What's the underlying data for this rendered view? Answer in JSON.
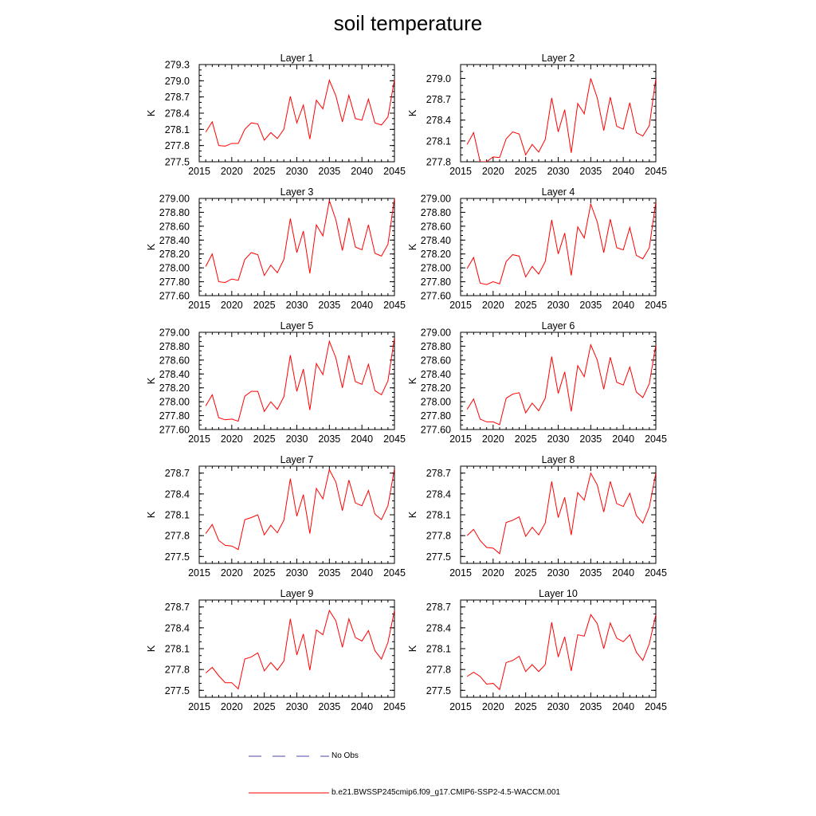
{
  "title": "soil temperature",
  "legend": {
    "no_obs_label": "No Obs",
    "model_label": "b.e21.BWSSP245cmip6.f09_g17.CMIP6-SSP2-4.5-WACCM.001",
    "no_obs_color": "#4a4aa8",
    "model_color": "#ff0000"
  },
  "chart_data": [
    {
      "type": "line",
      "title": "Layer 1",
      "ylabel": "K",
      "xlim": [
        2015,
        2045
      ],
      "ylim": [
        277.5,
        279.3
      ],
      "xticks": [
        "2015",
        "2020",
        "2025",
        "2030",
        "2035",
        "2040",
        "2045"
      ],
      "yticks": [
        "277.5",
        "277.8",
        "278.1",
        "278.4",
        "278.7",
        "279.0",
        "279.3"
      ],
      "x": [
        2016,
        2017,
        2018,
        2019,
        2020,
        2021,
        2022,
        2023,
        2024,
        2025,
        2026,
        2027,
        2028,
        2029,
        2030,
        2031,
        2032,
        2033,
        2034,
        2035,
        2036,
        2037,
        2038,
        2039,
        2040,
        2041,
        2042,
        2043,
        2044,
        2045
      ],
      "series": [
        {
          "values": [
            278.05,
            278.24,
            277.8,
            277.79,
            277.84,
            277.84,
            278.1,
            278.22,
            278.2,
            277.9,
            278.04,
            277.93,
            278.1,
            278.71,
            278.22,
            278.55,
            277.92,
            278.64,
            278.48,
            279.01,
            278.72,
            278.24,
            278.73,
            278.3,
            278.27,
            278.66,
            278.22,
            278.18,
            278.33,
            279.02
          ]
        }
      ]
    },
    {
      "type": "line",
      "title": "Layer 2",
      "ylabel": "K",
      "xlim": [
        2015,
        2045
      ],
      "ylim": [
        277.8,
        279.2
      ],
      "xticks": [
        "2015",
        "2020",
        "2025",
        "2030",
        "2035",
        "2040",
        "2045"
      ],
      "yticks": [
        "277.8",
        "278.1",
        "278.4",
        "278.7",
        "279.0"
      ],
      "x": [
        2016,
        2017,
        2018,
        2019,
        2020,
        2021,
        2022,
        2023,
        2024,
        2025,
        2026,
        2027,
        2028,
        2029,
        2030,
        2031,
        2032,
        2033,
        2034,
        2035,
        2036,
        2037,
        2038,
        2039,
        2040,
        2041,
        2042,
        2043,
        2044,
        2045
      ],
      "series": [
        {
          "values": [
            278.05,
            278.22,
            277.8,
            277.8,
            277.87,
            277.86,
            278.13,
            278.23,
            278.2,
            277.9,
            278.05,
            277.94,
            278.12,
            278.72,
            278.23,
            278.55,
            277.93,
            278.64,
            278.49,
            279.0,
            278.72,
            278.25,
            278.73,
            278.31,
            278.27,
            278.65,
            278.22,
            278.17,
            278.32,
            279.0
          ]
        }
      ]
    },
    {
      "type": "line",
      "title": "Layer 3",
      "ylabel": "K",
      "xlim": [
        2015,
        2045
      ],
      "ylim": [
        277.6,
        279.0
      ],
      "xticks": [
        "2015",
        "2020",
        "2025",
        "2030",
        "2035",
        "2040",
        "2045"
      ],
      "yticks": [
        "277.60",
        "277.80",
        "278.00",
        "278.20",
        "278.40",
        "278.60",
        "278.80",
        "279.00"
      ],
      "x": [
        2016,
        2017,
        2018,
        2019,
        2020,
        2021,
        2022,
        2023,
        2024,
        2025,
        2026,
        2027,
        2028,
        2029,
        2030,
        2031,
        2032,
        2033,
        2034,
        2035,
        2036,
        2037,
        2038,
        2039,
        2040,
        2041,
        2042,
        2043,
        2044,
        2045
      ],
      "series": [
        {
          "values": [
            278.02,
            278.2,
            277.8,
            277.79,
            277.84,
            277.82,
            278.12,
            278.22,
            278.19,
            277.89,
            278.04,
            277.93,
            278.12,
            278.71,
            278.22,
            278.53,
            277.92,
            278.62,
            278.46,
            278.97,
            278.69,
            278.25,
            278.72,
            278.3,
            278.26,
            278.62,
            278.21,
            278.17,
            278.34,
            279.0
          ]
        }
      ]
    },
    {
      "type": "line",
      "title": "Layer 4",
      "ylabel": "K",
      "xlim": [
        2015,
        2045
      ],
      "ylim": [
        277.6,
        279.0
      ],
      "xticks": [
        "2015",
        "2020",
        "2025",
        "2030",
        "2035",
        "2040",
        "2045"
      ],
      "yticks": [
        "277.60",
        "277.80",
        "278.00",
        "278.20",
        "278.40",
        "278.60",
        "278.80",
        "279.00"
      ],
      "x": [
        2016,
        2017,
        2018,
        2019,
        2020,
        2021,
        2022,
        2023,
        2024,
        2025,
        2026,
        2027,
        2028,
        2029,
        2030,
        2031,
        2032,
        2033,
        2034,
        2035,
        2036,
        2037,
        2038,
        2039,
        2040,
        2041,
        2042,
        2043,
        2044,
        2045
      ],
      "series": [
        {
          "values": [
            277.99,
            278.15,
            277.78,
            277.76,
            277.8,
            277.77,
            278.09,
            278.19,
            278.17,
            277.87,
            278.02,
            277.91,
            278.09,
            278.69,
            278.2,
            278.5,
            277.89,
            278.59,
            278.43,
            278.92,
            278.66,
            278.22,
            278.7,
            278.29,
            278.26,
            278.58,
            278.18,
            278.13,
            278.29,
            278.95
          ]
        }
      ]
    },
    {
      "type": "line",
      "title": "Layer 5",
      "ylabel": "K",
      "xlim": [
        2015,
        2045
      ],
      "ylim": [
        277.6,
        279.0
      ],
      "xticks": [
        "2015",
        "2020",
        "2025",
        "2030",
        "2035",
        "2040",
        "2045"
      ],
      "yticks": [
        "277.60",
        "277.80",
        "278.00",
        "278.20",
        "278.40",
        "278.60",
        "278.80",
        "279.00"
      ],
      "x": [
        2016,
        2017,
        2018,
        2019,
        2020,
        2021,
        2022,
        2023,
        2024,
        2025,
        2026,
        2027,
        2028,
        2029,
        2030,
        2031,
        2032,
        2033,
        2034,
        2035,
        2036,
        2037,
        2038,
        2039,
        2040,
        2041,
        2042,
        2043,
        2044,
        2045
      ],
      "series": [
        {
          "values": [
            277.94,
            278.1,
            277.77,
            277.74,
            277.75,
            277.72,
            278.08,
            278.15,
            278.15,
            277.86,
            278.0,
            277.89,
            278.07,
            278.67,
            278.15,
            278.47,
            277.88,
            278.55,
            278.39,
            278.87,
            278.63,
            278.2,
            278.67,
            278.29,
            278.25,
            278.54,
            278.16,
            278.1,
            278.3,
            278.92
          ]
        }
      ]
    },
    {
      "type": "line",
      "title": "Layer 6",
      "ylabel": "K",
      "xlim": [
        2015,
        2045
      ],
      "ylim": [
        277.6,
        279.0
      ],
      "xticks": [
        "2015",
        "2020",
        "2025",
        "2030",
        "2035",
        "2040",
        "2045"
      ],
      "yticks": [
        "277.60",
        "277.80",
        "278.00",
        "278.20",
        "278.40",
        "278.60",
        "278.80",
        "279.00"
      ],
      "x": [
        2016,
        2017,
        2018,
        2019,
        2020,
        2021,
        2022,
        2023,
        2024,
        2025,
        2026,
        2027,
        2028,
        2029,
        2030,
        2031,
        2032,
        2033,
        2034,
        2035,
        2036,
        2037,
        2038,
        2039,
        2040,
        2041,
        2042,
        2043,
        2044,
        2045
      ],
      "series": [
        {
          "values": [
            277.89,
            278.04,
            277.75,
            277.71,
            277.71,
            277.67,
            278.05,
            278.11,
            278.13,
            277.84,
            277.98,
            277.87,
            278.05,
            278.65,
            278.12,
            278.43,
            277.86,
            278.52,
            278.36,
            278.82,
            278.6,
            278.18,
            278.64,
            278.28,
            278.24,
            278.5,
            278.14,
            278.06,
            278.26,
            278.82
          ]
        }
      ]
    },
    {
      "type": "line",
      "title": "Layer 7",
      "ylabel": "K",
      "xlim": [
        2015,
        2045
      ],
      "ylim": [
        277.4,
        278.8
      ],
      "xticks": [
        "2015",
        "2020",
        "2025",
        "2030",
        "2035",
        "2040",
        "2045"
      ],
      "yticks": [
        "277.5",
        "277.8",
        "278.1",
        "278.4",
        "278.7"
      ],
      "x": [
        2016,
        2017,
        2018,
        2019,
        2020,
        2021,
        2022,
        2023,
        2024,
        2025,
        2026,
        2027,
        2028,
        2029,
        2030,
        2031,
        2032,
        2033,
        2034,
        2035,
        2036,
        2037,
        2038,
        2039,
        2040,
        2041,
        2042,
        2043,
        2044,
        2045
      ],
      "series": [
        {
          "values": [
            277.83,
            277.96,
            277.73,
            277.66,
            277.65,
            277.6,
            278.03,
            278.06,
            278.1,
            277.81,
            277.95,
            277.84,
            278.02,
            278.62,
            278.08,
            278.39,
            277.83,
            278.48,
            278.33,
            278.75,
            278.57,
            278.16,
            278.6,
            278.27,
            278.23,
            278.45,
            278.11,
            278.03,
            278.23,
            278.76
          ]
        }
      ]
    },
    {
      "type": "line",
      "title": "Layer 8",
      "ylabel": "K",
      "xlim": [
        2015,
        2045
      ],
      "ylim": [
        277.4,
        278.8
      ],
      "xticks": [
        "2015",
        "2020",
        "2025",
        "2030",
        "2035",
        "2040",
        "2045"
      ],
      "yticks": [
        "277.5",
        "277.8",
        "278.1",
        "278.4",
        "278.7"
      ],
      "x": [
        2016,
        2017,
        2018,
        2019,
        2020,
        2021,
        2022,
        2023,
        2024,
        2025,
        2026,
        2027,
        2028,
        2029,
        2030,
        2031,
        2032,
        2033,
        2034,
        2035,
        2036,
        2037,
        2038,
        2039,
        2040,
        2041,
        2042,
        2043,
        2044,
        2045
      ],
      "series": [
        {
          "values": [
            277.8,
            277.89,
            277.73,
            277.63,
            277.62,
            277.54,
            277.99,
            278.02,
            278.07,
            277.79,
            277.92,
            277.81,
            277.98,
            278.58,
            278.06,
            278.35,
            277.81,
            278.42,
            278.31,
            278.7,
            278.53,
            278.14,
            278.58,
            278.26,
            278.22,
            278.41,
            278.09,
            277.98,
            278.21,
            278.7
          ]
        }
      ]
    },
    {
      "type": "line",
      "title": "Layer 9",
      "ylabel": "K",
      "xlim": [
        2015,
        2045
      ],
      "ylim": [
        277.4,
        278.8
      ],
      "xticks": [
        "2015",
        "2020",
        "2025",
        "2030",
        "2035",
        "2040",
        "2045"
      ],
      "yticks": [
        "277.5",
        "277.8",
        "278.1",
        "278.4",
        "278.7"
      ],
      "x": [
        2016,
        2017,
        2018,
        2019,
        2020,
        2021,
        2022,
        2023,
        2024,
        2025,
        2026,
        2027,
        2028,
        2029,
        2030,
        2031,
        2032,
        2033,
        2034,
        2035,
        2036,
        2037,
        2038,
        2039,
        2040,
        2041,
        2042,
        2043,
        2044,
        2045
      ],
      "series": [
        {
          "values": [
            277.75,
            277.83,
            277.71,
            277.61,
            277.61,
            277.52,
            277.95,
            277.98,
            278.04,
            277.78,
            277.9,
            277.79,
            277.92,
            278.53,
            278.01,
            278.31,
            277.79,
            278.37,
            278.3,
            278.65,
            278.5,
            278.12,
            278.53,
            278.26,
            278.21,
            278.36,
            278.07,
            277.95,
            278.19,
            278.65
          ]
        }
      ]
    },
    {
      "type": "line",
      "title": "Layer 10",
      "ylabel": "K",
      "xlim": [
        2015,
        2045
      ],
      "ylim": [
        277.4,
        278.8
      ],
      "xticks": [
        "2015",
        "2020",
        "2025",
        "2030",
        "2035",
        "2040",
        "2045"
      ],
      "yticks": [
        "277.5",
        "277.8",
        "278.1",
        "278.4",
        "278.7"
      ],
      "x": [
        2016,
        2017,
        2018,
        2019,
        2020,
        2021,
        2022,
        2023,
        2024,
        2025,
        2026,
        2027,
        2028,
        2029,
        2030,
        2031,
        2032,
        2033,
        2034,
        2035,
        2036,
        2037,
        2038,
        2039,
        2040,
        2041,
        2042,
        2043,
        2044,
        2045
      ],
      "series": [
        {
          "values": [
            277.7,
            277.76,
            277.7,
            277.59,
            277.6,
            277.51,
            277.9,
            277.93,
            277.99,
            277.77,
            277.87,
            277.77,
            277.87,
            278.48,
            277.98,
            278.27,
            277.78,
            278.3,
            278.28,
            278.59,
            278.46,
            278.1,
            278.47,
            278.25,
            278.2,
            278.3,
            278.05,
            277.93,
            278.17,
            278.59
          ]
        }
      ]
    }
  ]
}
